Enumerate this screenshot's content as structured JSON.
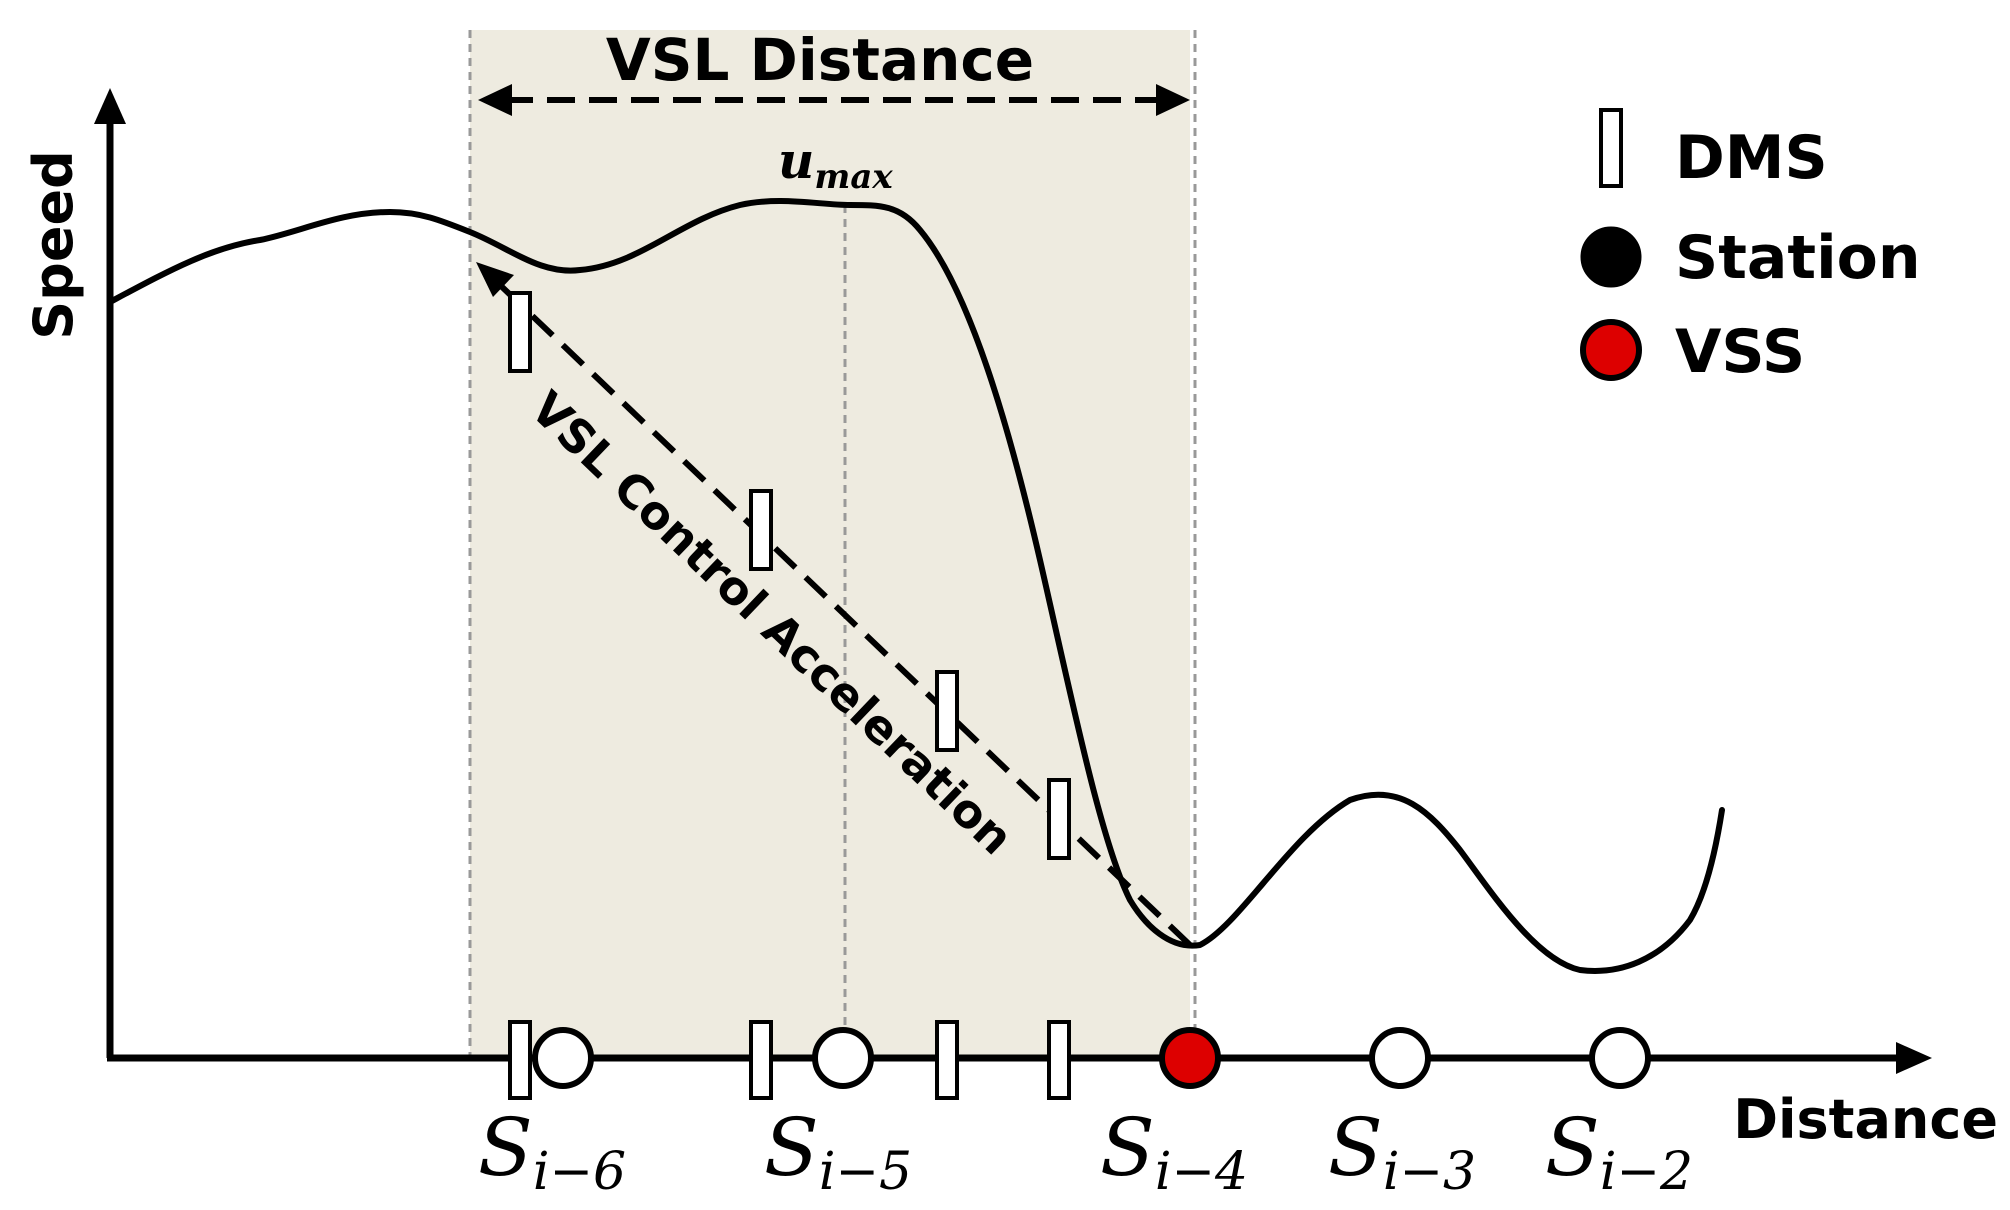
{
  "axes": {
    "y_label": "Speed",
    "x_label": "Distance"
  },
  "region": {
    "label": "VSL Distance"
  },
  "curve": {
    "peak_label_main": "u",
    "peak_label_sub": "max"
  },
  "control": {
    "label": "VSL Control Acceleration"
  },
  "legend": {
    "items": [
      {
        "symbol": "dms",
        "label": "DMS"
      },
      {
        "symbol": "station",
        "label": "Station"
      },
      {
        "symbol": "vss",
        "label": "VSS"
      }
    ]
  },
  "stations": [
    {
      "main": "S",
      "sub": "i−6",
      "kind": "station"
    },
    {
      "main": "S",
      "sub": "i−5",
      "kind": "station"
    },
    {
      "main": "S",
      "sub": "i−4",
      "kind": "vss"
    },
    {
      "main": "S",
      "sub": "i−3",
      "kind": "station"
    },
    {
      "main": "S",
      "sub": "i−2",
      "kind": "station"
    }
  ],
  "colors": {
    "region_fill": "#eeebe0",
    "vss_fill": "#dd0000",
    "guide_line": "#999999",
    "ink": "#000000"
  }
}
